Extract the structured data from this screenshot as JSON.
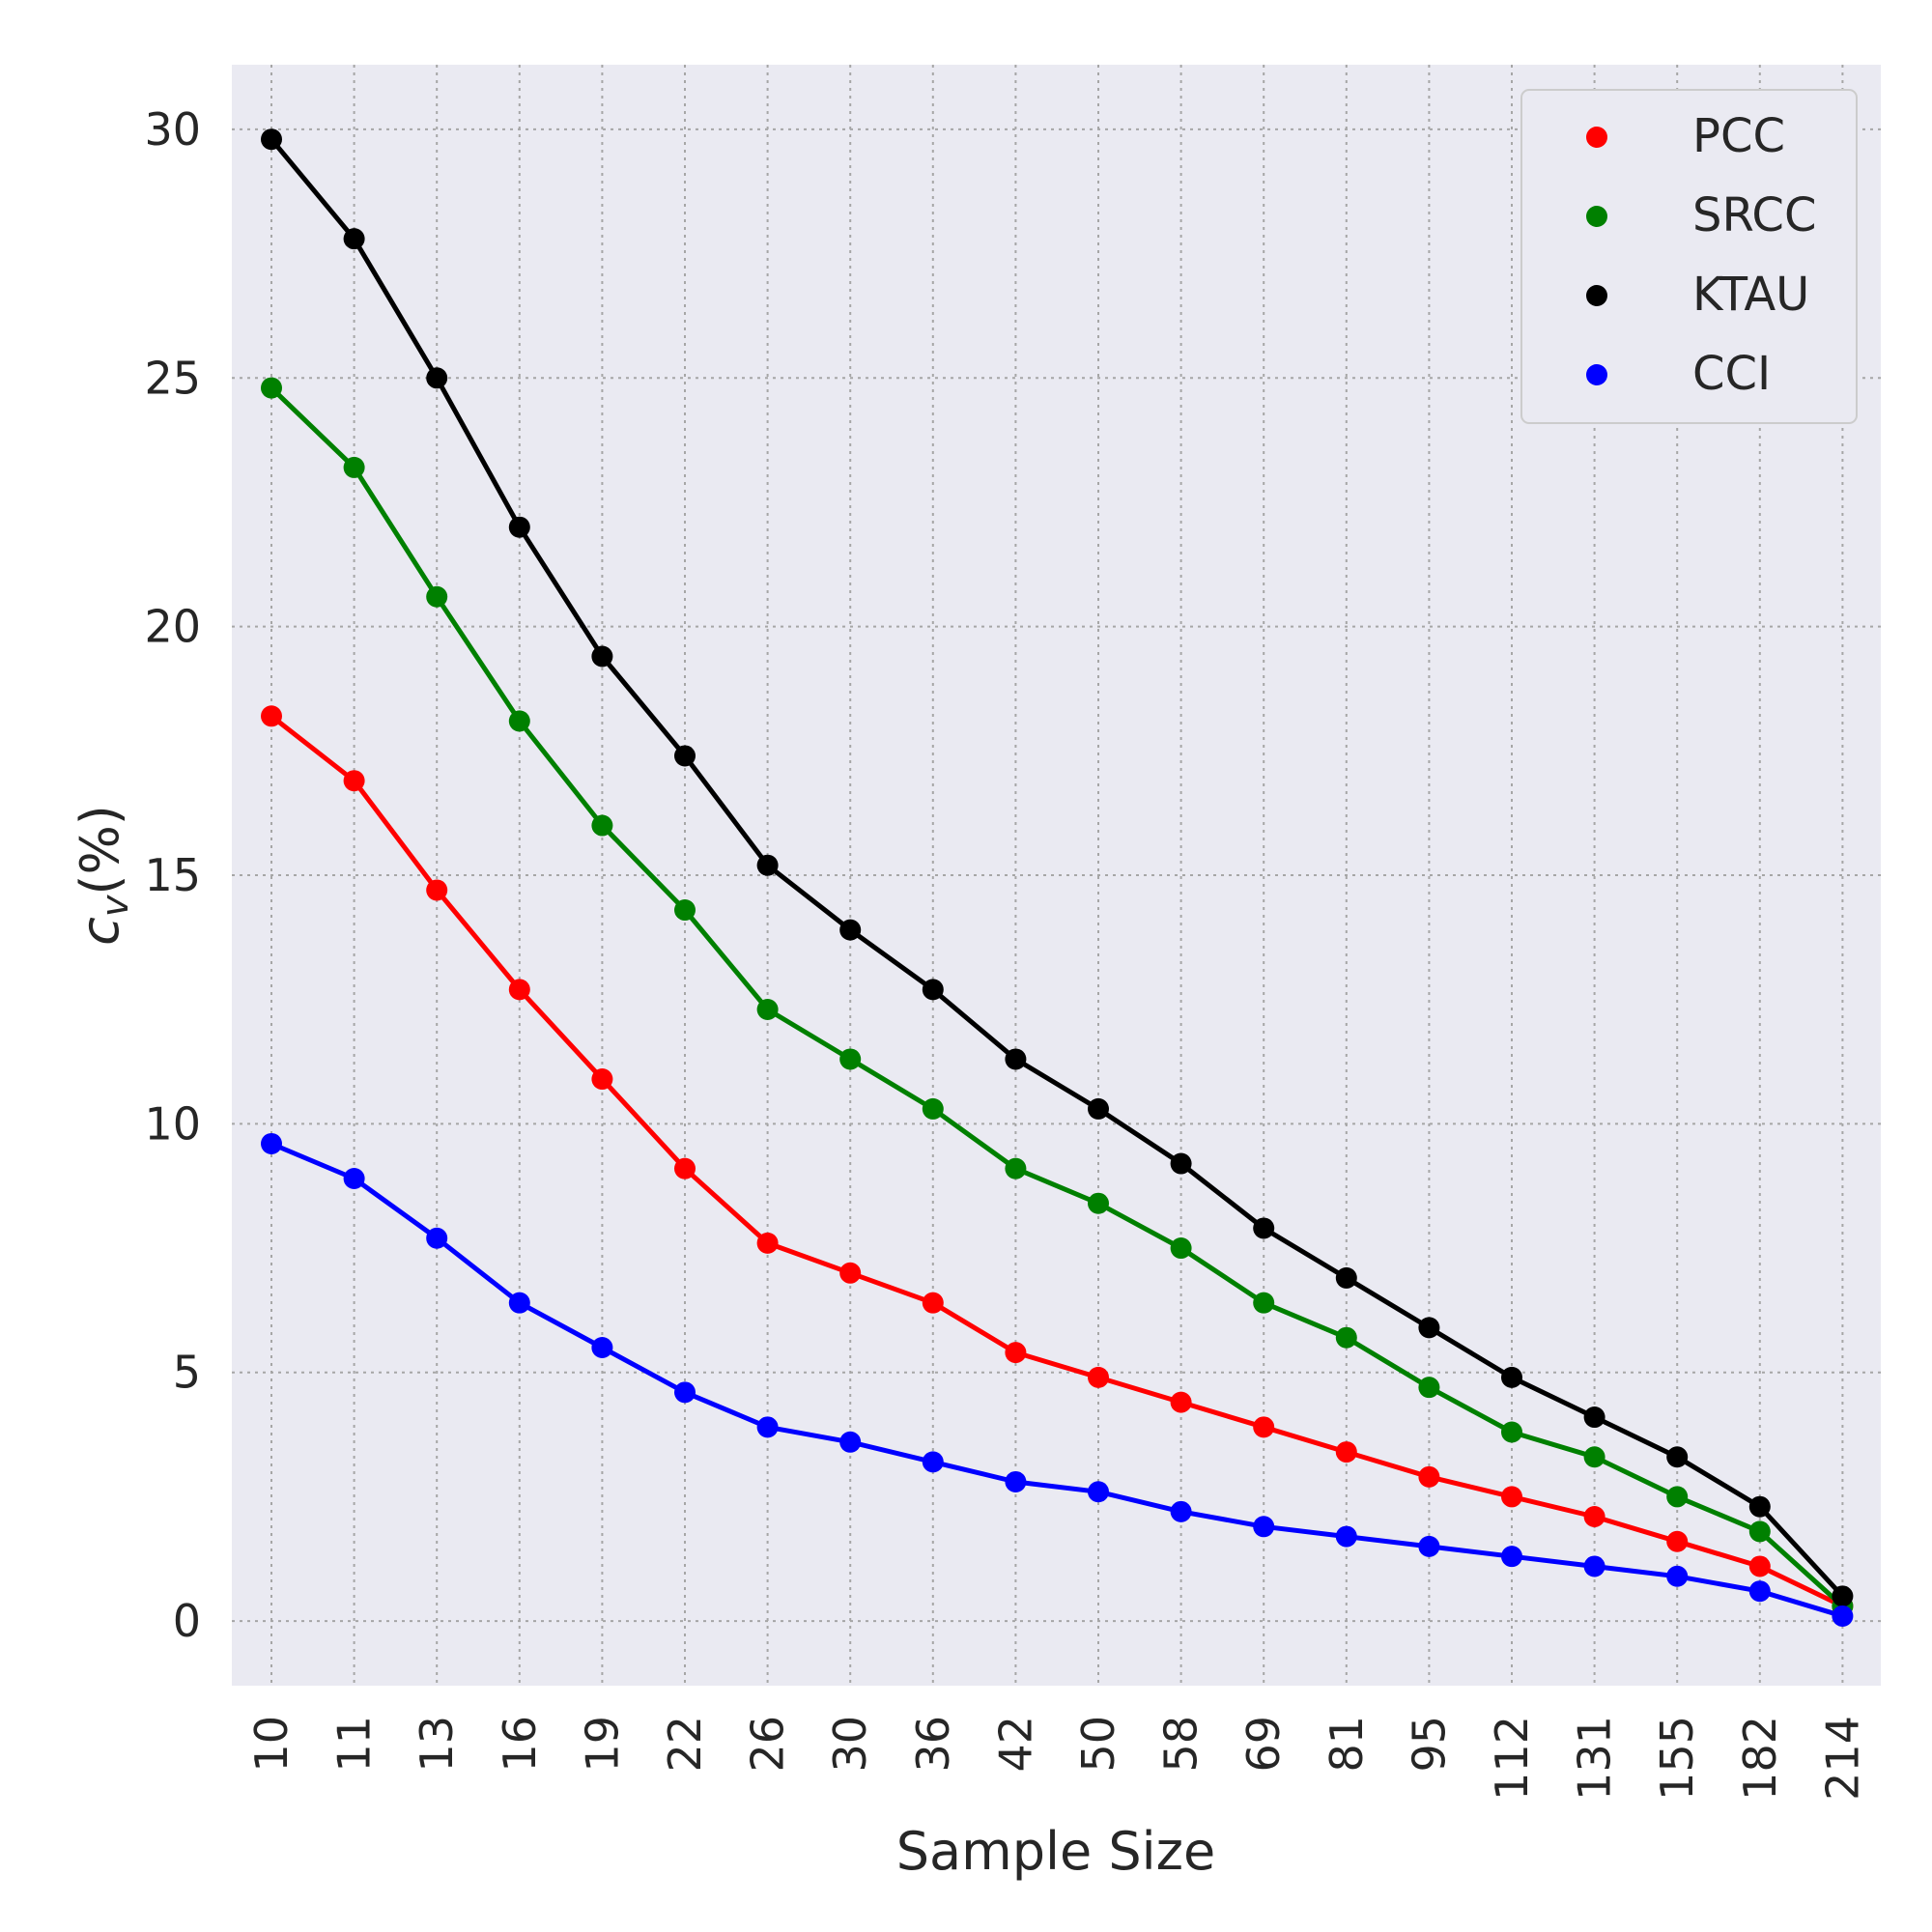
{
  "chart_data": {
    "type": "line",
    "title": "",
    "xlabel": "Sample Size",
    "ylabel_main": "c",
    "ylabel_sub": "v",
    "ylabel_suffix": "(%)",
    "categories": [
      "10",
      "11",
      "13",
      "16",
      "19",
      "22",
      "26",
      "30",
      "36",
      "42",
      "50",
      "58",
      "69",
      "81",
      "95",
      "112",
      "131",
      "155",
      "182",
      "214"
    ],
    "ylim": [
      -1.3,
      31.3
    ],
    "yticks": [
      0,
      5,
      10,
      15,
      20,
      25,
      30
    ],
    "grid": true,
    "legend_position": "top-right",
    "background": "#eaeaf2",
    "series": [
      {
        "name": "PCC",
        "color": "#ff0000",
        "values": [
          18.2,
          16.9,
          14.7,
          12.7,
          10.9,
          9.1,
          7.6,
          7.0,
          6.4,
          5.4,
          4.9,
          4.4,
          3.9,
          3.4,
          2.9,
          2.5,
          2.1,
          1.6,
          1.1,
          0.3
        ]
      },
      {
        "name": "SRCC",
        "color": "#008000",
        "values": [
          24.8,
          23.2,
          20.6,
          18.1,
          16.0,
          14.3,
          12.3,
          11.3,
          10.3,
          9.1,
          8.4,
          7.5,
          6.4,
          5.7,
          4.7,
          3.8,
          3.3,
          2.5,
          1.8,
          0.3
        ]
      },
      {
        "name": "KTAU",
        "color": "#000000",
        "values": [
          29.8,
          27.8,
          25.0,
          22.0,
          19.4,
          17.4,
          15.2,
          13.9,
          12.7,
          11.3,
          10.3,
          9.2,
          7.9,
          6.9,
          5.9,
          4.9,
          4.1,
          3.3,
          2.3,
          0.5
        ]
      },
      {
        "name": "CCI",
        "color": "#0000ff",
        "values": [
          9.6,
          8.9,
          7.7,
          6.4,
          5.5,
          4.6,
          3.9,
          3.6,
          3.2,
          2.8,
          2.6,
          2.2,
          1.9,
          1.7,
          1.5,
          1.3,
          1.1,
          0.9,
          0.6,
          0.1
        ]
      }
    ]
  }
}
